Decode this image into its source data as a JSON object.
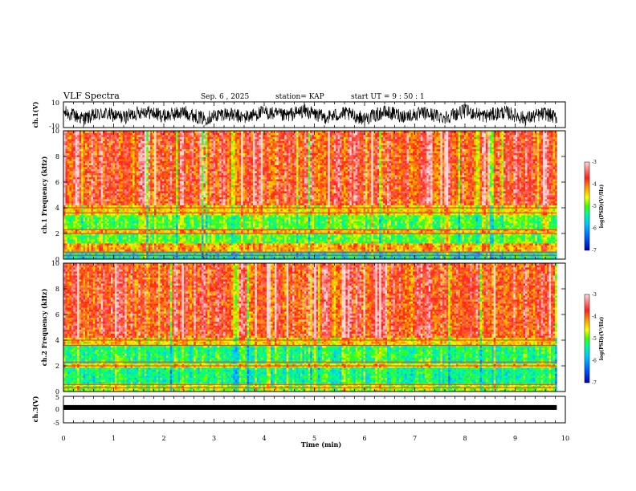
{
  "header": {
    "title": "VLF Spectra",
    "date": "Sep. 6 , 2025",
    "station": "station= KAP",
    "start": "start UT =  9 : 50 : 1"
  },
  "chart_data": [
    {
      "type": "line",
      "title": "",
      "ylabel": "ch.1(V)",
      "ylim": [
        -10,
        10
      ],
      "yticks": [
        "10",
        "-10"
      ],
      "description_of_series": "noisy voltage trace oscillating roughly between -8 and 8 V",
      "x": [
        0.0,
        0.4,
        0.8,
        1.2,
        1.6,
        2.0,
        2.4,
        2.8,
        3.2,
        3.6,
        4.0,
        4.4,
        4.8,
        5.2,
        5.6,
        6.0,
        6.4,
        6.8,
        7.2,
        7.6,
        8.0,
        8.4,
        8.8,
        9.2,
        9.6,
        9.8
      ],
      "y": [
        2,
        -3,
        1,
        -2,
        3,
        -1,
        2,
        -3,
        1,
        -2,
        2,
        -1,
        3,
        -2,
        1,
        -3,
        2,
        -1,
        1,
        -2,
        3,
        -1,
        2,
        -3,
        1,
        -2
      ]
    },
    {
      "type": "heatmap",
      "ylabel": "ch.1 Frequency (kHz)",
      "ylim": [
        0,
        10
      ],
      "yticks": [
        "0",
        "2",
        "4",
        "6",
        "8",
        "10"
      ],
      "colorbar": {
        "label": "log(PSD)(V²/Hz)",
        "range": [
          -7,
          -3
        ],
        "ticks": [
          "-3",
          "-4",
          "-5",
          "-6",
          "-7"
        ]
      },
      "bands": [
        {
          "from": 0,
          "to": 0.7,
          "level": -5.5
        },
        {
          "from": 0.7,
          "to": 1.2,
          "level": -4.2
        },
        {
          "from": 1.2,
          "to": 2.0,
          "level": -5.0
        },
        {
          "from": 2.0,
          "to": 2.4,
          "level": -4.3
        },
        {
          "from": 2.4,
          "to": 3.4,
          "level": -5.0
        },
        {
          "from": 3.4,
          "to": 4.2,
          "level": -4.4
        },
        {
          "from": 4.2,
          "to": 10,
          "level": -3.7
        }
      ]
    },
    {
      "type": "heatmap",
      "ylabel": "ch.2 Frequency (kHz)",
      "ylim": [
        0,
        10
      ],
      "yticks": [
        "0",
        "2",
        "4",
        "6",
        "8",
        "10"
      ],
      "colorbar": {
        "label": "log(PSD)(V²/Hz)",
        "range": [
          -7,
          -3
        ],
        "ticks": [
          "-3",
          "-4",
          "-5",
          "-6",
          "-7"
        ]
      },
      "bands": [
        {
          "from": 0,
          "to": 0.6,
          "level": -4.8
        },
        {
          "from": 0.6,
          "to": 1.8,
          "level": -5.3
        },
        {
          "from": 1.8,
          "to": 2.2,
          "level": -4.4
        },
        {
          "from": 2.2,
          "to": 3.6,
          "level": -5.2
        },
        {
          "from": 3.6,
          "to": 4.2,
          "level": -4.4
        },
        {
          "from": 4.2,
          "to": 10,
          "level": -3.7
        }
      ]
    },
    {
      "type": "line",
      "ylabel": "ch.3(V)",
      "ylim": [
        -5,
        5
      ],
      "yticks": [
        "5",
        "0",
        "-5"
      ],
      "level_v": 0.8
    }
  ],
  "xaxis": {
    "label": "Time (min)",
    "xlim": [
      0,
      10
    ],
    "ticks": [
      "0",
      "1",
      "2",
      "3",
      "4",
      "5",
      "6",
      "7",
      "8",
      "9",
      "10"
    ],
    "data_end": 9.83
  },
  "colors": {
    "scale": [
      "#0000b0",
      "#0060ff",
      "#00c8ff",
      "#00ff90",
      "#40ff00",
      "#ffff00",
      "#ff9000",
      "#ff2020",
      "#ffd8d8"
    ]
  }
}
